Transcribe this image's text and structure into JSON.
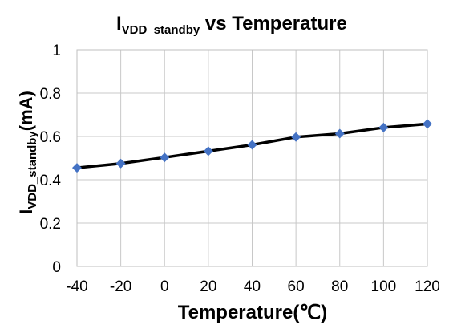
{
  "chart_data": {
    "type": "line",
    "title": {
      "prefix": "I",
      "subscript": "VDD_standby",
      "suffix": " vs Temperature"
    },
    "xlabel": "Temperature(℃)",
    "ylabel": {
      "prefix": "I",
      "subscript": "VDD_standby",
      "suffix": "(mA)"
    },
    "x": [
      -40,
      -20,
      0,
      20,
      40,
      60,
      80,
      100,
      120
    ],
    "x_tick_labels": [
      "-40",
      "-20",
      "0",
      "20",
      "40",
      "60",
      "80",
      "100",
      "120"
    ],
    "y_tick_values": [
      0,
      0.2,
      0.4,
      0.6,
      0.8,
      1
    ],
    "y_tick_labels": [
      "0",
      "0.2",
      "0.4",
      "0.6",
      "0.8",
      "1"
    ],
    "series": [
      {
        "values": [
          0.455,
          0.475,
          0.503,
          0.532,
          0.561,
          0.597,
          0.613,
          0.641,
          0.658
        ],
        "line_color": "#000000",
        "marker": "diamond",
        "marker_color": "#4472C4"
      }
    ],
    "xlim": [
      -40,
      120
    ],
    "ylim": [
      0,
      1
    ],
    "grid": true,
    "legend": "none"
  }
}
